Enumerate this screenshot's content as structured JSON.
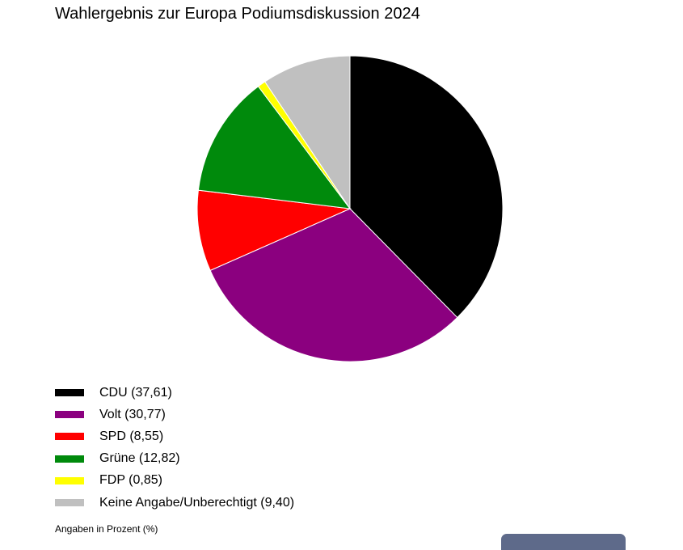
{
  "chart_data": {
    "type": "pie",
    "title": "Wahlergebnis zur Europa Podiumsdiskussion 2024",
    "footnote": "Angaben in Prozent (%)",
    "legend_position": "bottom-left",
    "slices": [
      {
        "label": "CDU (37,61)",
        "name": "CDU",
        "value": 37.61,
        "color": "#000000"
      },
      {
        "label": "Volt (30,77)",
        "name": "Volt",
        "value": 30.77,
        "color": "#8b007f"
      },
      {
        "label": "SPD (8,55)",
        "name": "SPD",
        "value": 8.55,
        "color": "#ff0000"
      },
      {
        "label": "Grüne (12,82)",
        "name": "Grüne",
        "value": 12.82,
        "color": "#008a0c"
      },
      {
        "label": "FDP (0,85)",
        "name": "FDP",
        "value": 0.85,
        "color": "#ffff00"
      },
      {
        "label": "Keine Angabe/Unberechtigt (9,40)",
        "name": "Keine Angabe/Unberechtigt",
        "value": 9.4,
        "color": "#c0c0c0"
      }
    ]
  }
}
